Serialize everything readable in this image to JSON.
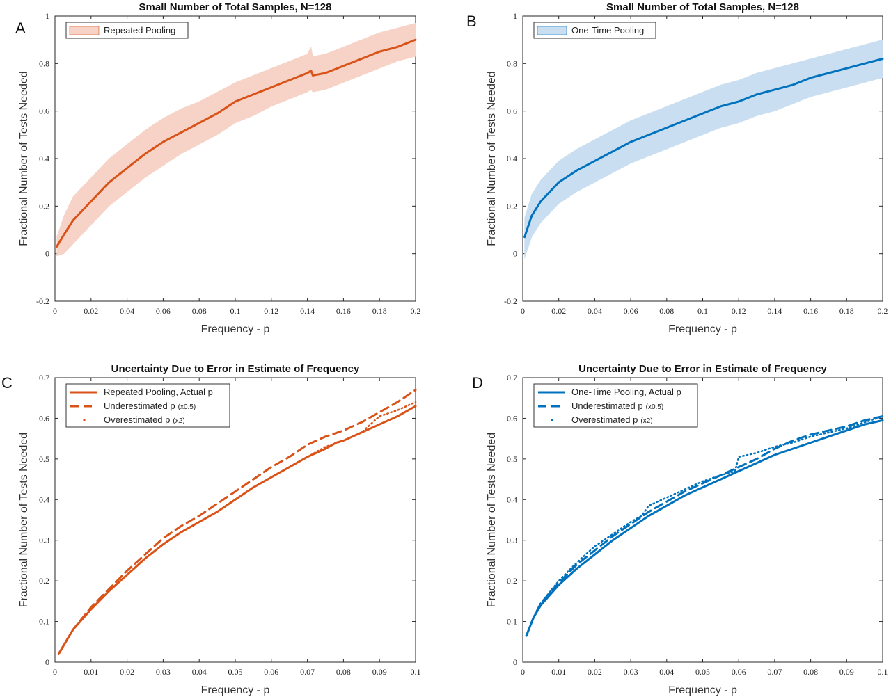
{
  "chart_data": [
    {
      "panel": "A",
      "type": "area",
      "title": "Small Number of Total Samples, N=128",
      "xlabel": "Frequency - p",
      "ylabel": "Fractional Number of Tests Needed",
      "xlim": [
        0,
        0.2
      ],
      "ylim": [
        -0.2,
        1
      ],
      "xticks": [
        "0",
        "0.02",
        "0.04",
        "0.06",
        "0.08",
        "0.1",
        "0.12",
        "0.14",
        "0.16",
        "0.18",
        "0.2"
      ],
      "yticks": [
        "-0.2",
        "0",
        "0.2",
        "0.4",
        "0.6",
        "0.8",
        "1"
      ],
      "legend_placement": "top-left",
      "color": "#D95319",
      "band_color": "#F6D3C6",
      "series": [
        {
          "name": "Repeated Pooling",
          "x": [
            0.001,
            0.005,
            0.01,
            0.02,
            0.03,
            0.04,
            0.05,
            0.06,
            0.07,
            0.08,
            0.09,
            0.1,
            0.11,
            0.12,
            0.13,
            0.14,
            0.142,
            0.143,
            0.15,
            0.16,
            0.17,
            0.18,
            0.19,
            0.2
          ],
          "values": [
            0.03,
            0.08,
            0.14,
            0.22,
            0.3,
            0.36,
            0.42,
            0.47,
            0.51,
            0.55,
            0.59,
            0.64,
            0.67,
            0.7,
            0.73,
            0.76,
            0.77,
            0.75,
            0.76,
            0.79,
            0.82,
            0.85,
            0.87,
            0.9
          ],
          "lower": [
            -0.01,
            0.0,
            0.04,
            0.12,
            0.2,
            0.26,
            0.32,
            0.37,
            0.42,
            0.46,
            0.5,
            0.55,
            0.58,
            0.62,
            0.65,
            0.68,
            0.69,
            0.68,
            0.69,
            0.72,
            0.75,
            0.78,
            0.81,
            0.83
          ],
          "upper": [
            0.07,
            0.16,
            0.24,
            0.32,
            0.4,
            0.46,
            0.52,
            0.57,
            0.61,
            0.64,
            0.68,
            0.72,
            0.75,
            0.78,
            0.81,
            0.84,
            0.87,
            0.83,
            0.84,
            0.87,
            0.9,
            0.93,
            0.95,
            0.97
          ]
        }
      ]
    },
    {
      "panel": "B",
      "type": "area",
      "title": "Small Number of Total Samples, N=128",
      "xlabel": "Frequency - p",
      "ylabel": "Fractional Number of Tests Needed",
      "xlim": [
        0,
        0.2
      ],
      "ylim": [
        -0.2,
        1
      ],
      "xticks": [
        "0",
        "0.02",
        "0.04",
        "0.06",
        "0.08",
        "0.1",
        "0.12",
        "0.14",
        "0.16",
        "0.18",
        "0.2"
      ],
      "yticks": [
        "-0.2",
        "0",
        "0.2",
        "0.4",
        "0.6",
        "0.8",
        "1"
      ],
      "legend_placement": "top-left",
      "color": "#0072BD",
      "band_color": "#C9DFF1",
      "series": [
        {
          "name": "One-Time Pooling",
          "x": [
            0.001,
            0.005,
            0.01,
            0.015,
            0.02,
            0.03,
            0.04,
            0.05,
            0.06,
            0.07,
            0.08,
            0.09,
            0.1,
            0.11,
            0.12,
            0.13,
            0.14,
            0.15,
            0.16,
            0.17,
            0.18,
            0.19,
            0.2
          ],
          "values": [
            0.07,
            0.16,
            0.22,
            0.26,
            0.3,
            0.35,
            0.39,
            0.43,
            0.47,
            0.5,
            0.53,
            0.56,
            0.59,
            0.62,
            0.64,
            0.67,
            0.69,
            0.71,
            0.74,
            0.76,
            0.78,
            0.8,
            0.82
          ],
          "lower": [
            -0.02,
            0.07,
            0.13,
            0.17,
            0.21,
            0.26,
            0.3,
            0.34,
            0.38,
            0.41,
            0.44,
            0.47,
            0.5,
            0.53,
            0.55,
            0.58,
            0.6,
            0.63,
            0.66,
            0.68,
            0.7,
            0.72,
            0.74
          ],
          "upper": [
            0.15,
            0.25,
            0.31,
            0.35,
            0.39,
            0.44,
            0.48,
            0.52,
            0.56,
            0.59,
            0.62,
            0.65,
            0.68,
            0.71,
            0.73,
            0.76,
            0.78,
            0.8,
            0.82,
            0.84,
            0.86,
            0.88,
            0.9
          ]
        }
      ]
    },
    {
      "panel": "C",
      "type": "line",
      "title": "Uncertainty Due to Error in Estimate of Frequency",
      "xlabel": "Frequency - p",
      "ylabel": "Fractional Number of Tests Needed",
      "xlim": [
        0,
        0.1
      ],
      "ylim": [
        0,
        0.7
      ],
      "xticks": [
        "0",
        "0.01",
        "0.02",
        "0.03",
        "0.04",
        "0.05",
        "0.06",
        "0.07",
        "0.08",
        "0.09",
        "0.1"
      ],
      "yticks": [
        "0",
        "0.1",
        "0.2",
        "0.3",
        "0.4",
        "0.5",
        "0.6",
        "0.7"
      ],
      "legend_placement": "top-left",
      "color": "#D95319",
      "series": [
        {
          "name": "Repeated Pooling, Actual p",
          "legend_suffix": "",
          "style": "solid",
          "x": [
            0.001,
            0.005,
            0.01,
            0.015,
            0.02,
            0.025,
            0.03,
            0.035,
            0.04,
            0.045,
            0.05,
            0.055,
            0.06,
            0.065,
            0.07,
            0.075,
            0.078,
            0.08,
            0.085,
            0.09,
            0.095,
            0.1
          ],
          "values": [
            0.02,
            0.08,
            0.13,
            0.175,
            0.215,
            0.255,
            0.29,
            0.32,
            0.345,
            0.37,
            0.4,
            0.43,
            0.455,
            0.48,
            0.505,
            0.525,
            0.54,
            0.545,
            0.565,
            0.585,
            0.605,
            0.63
          ]
        },
        {
          "name": "Underestimated p",
          "legend_suffix": "(x0.5)",
          "style": "dashed",
          "x": [
            0.001,
            0.005,
            0.01,
            0.015,
            0.02,
            0.025,
            0.03,
            0.035,
            0.04,
            0.045,
            0.05,
            0.055,
            0.06,
            0.065,
            0.07,
            0.075,
            0.08,
            0.085,
            0.09,
            0.095,
            0.1
          ],
          "values": [
            0.02,
            0.08,
            0.135,
            0.18,
            0.225,
            0.265,
            0.305,
            0.335,
            0.36,
            0.39,
            0.42,
            0.45,
            0.48,
            0.505,
            0.535,
            0.555,
            0.57,
            0.59,
            0.615,
            0.64,
            0.67
          ]
        },
        {
          "name": "Overestimated p",
          "legend_suffix": "(x2)",
          "style": "dotted",
          "x": [
            0.001,
            0.005,
            0.01,
            0.015,
            0.02,
            0.025,
            0.03,
            0.035,
            0.04,
            0.045,
            0.05,
            0.055,
            0.06,
            0.065,
            0.07,
            0.075,
            0.08,
            0.085,
            0.09,
            0.095,
            0.1
          ],
          "values": [
            0.02,
            0.08,
            0.13,
            0.175,
            0.215,
            0.255,
            0.29,
            0.32,
            0.345,
            0.37,
            0.4,
            0.43,
            0.455,
            0.48,
            0.505,
            0.53,
            0.545,
            0.565,
            0.605,
            0.62,
            0.64
          ]
        }
      ]
    },
    {
      "panel": "D",
      "type": "line",
      "title": "Uncertainty Due to Error in Estimate of Frequency",
      "xlabel": "Frequency - p",
      "ylabel": "Fractional Number of Tests Needed",
      "xlim": [
        0,
        0.1
      ],
      "ylim": [
        0,
        0.7
      ],
      "xticks": [
        "0",
        "0.01",
        "0.02",
        "0.03",
        "0.04",
        "0.05",
        "0.06",
        "0.07",
        "0.08",
        "0.09",
        "0.1"
      ],
      "yticks": [
        "0",
        "0.1",
        "0.2",
        "0.3",
        "0.4",
        "0.5",
        "0.6",
        "0.7"
      ],
      "legend_placement": "top-left",
      "color": "#0072BD",
      "series": [
        {
          "name": "One-Time Pooling, Actual p",
          "legend_suffix": "",
          "style": "solid",
          "x": [
            0.001,
            0.003,
            0.005,
            0.01,
            0.015,
            0.02,
            0.025,
            0.03,
            0.035,
            0.04,
            0.045,
            0.05,
            0.055,
            0.06,
            0.065,
            0.07,
            0.075,
            0.08,
            0.085,
            0.09,
            0.095,
            0.1
          ],
          "values": [
            0.065,
            0.11,
            0.14,
            0.19,
            0.23,
            0.265,
            0.3,
            0.33,
            0.36,
            0.385,
            0.41,
            0.43,
            0.45,
            0.47,
            0.49,
            0.51,
            0.525,
            0.54,
            0.555,
            0.57,
            0.585,
            0.595
          ]
        },
        {
          "name": "Underestimated p",
          "legend_suffix": "(x0.5)",
          "style": "dashed",
          "x": [
            0.001,
            0.003,
            0.005,
            0.01,
            0.015,
            0.02,
            0.025,
            0.03,
            0.035,
            0.04,
            0.045,
            0.05,
            0.055,
            0.06,
            0.065,
            0.07,
            0.075,
            0.08,
            0.085,
            0.09,
            0.095,
            0.1
          ],
          "values": [
            0.065,
            0.11,
            0.145,
            0.195,
            0.24,
            0.275,
            0.31,
            0.34,
            0.37,
            0.395,
            0.42,
            0.44,
            0.46,
            0.48,
            0.5,
            0.525,
            0.545,
            0.56,
            0.57,
            0.58,
            0.595,
            0.605
          ]
        },
        {
          "name": "Overestimated p",
          "legend_suffix": "(x2)",
          "style": "dotted",
          "x": [
            0.001,
            0.003,
            0.005,
            0.01,
            0.015,
            0.02,
            0.025,
            0.03,
            0.033,
            0.035,
            0.04,
            0.045,
            0.05,
            0.055,
            0.059,
            0.06,
            0.065,
            0.07,
            0.075,
            0.08,
            0.085,
            0.09,
            0.095,
            0.1
          ],
          "values": [
            0.065,
            0.11,
            0.145,
            0.2,
            0.245,
            0.285,
            0.315,
            0.345,
            0.36,
            0.385,
            0.405,
            0.425,
            0.445,
            0.46,
            0.47,
            0.505,
            0.515,
            0.53,
            0.54,
            0.555,
            0.565,
            0.575,
            0.59,
            0.605
          ]
        }
      ]
    }
  ],
  "panel_labels": [
    "A",
    "B",
    "C",
    "D"
  ]
}
